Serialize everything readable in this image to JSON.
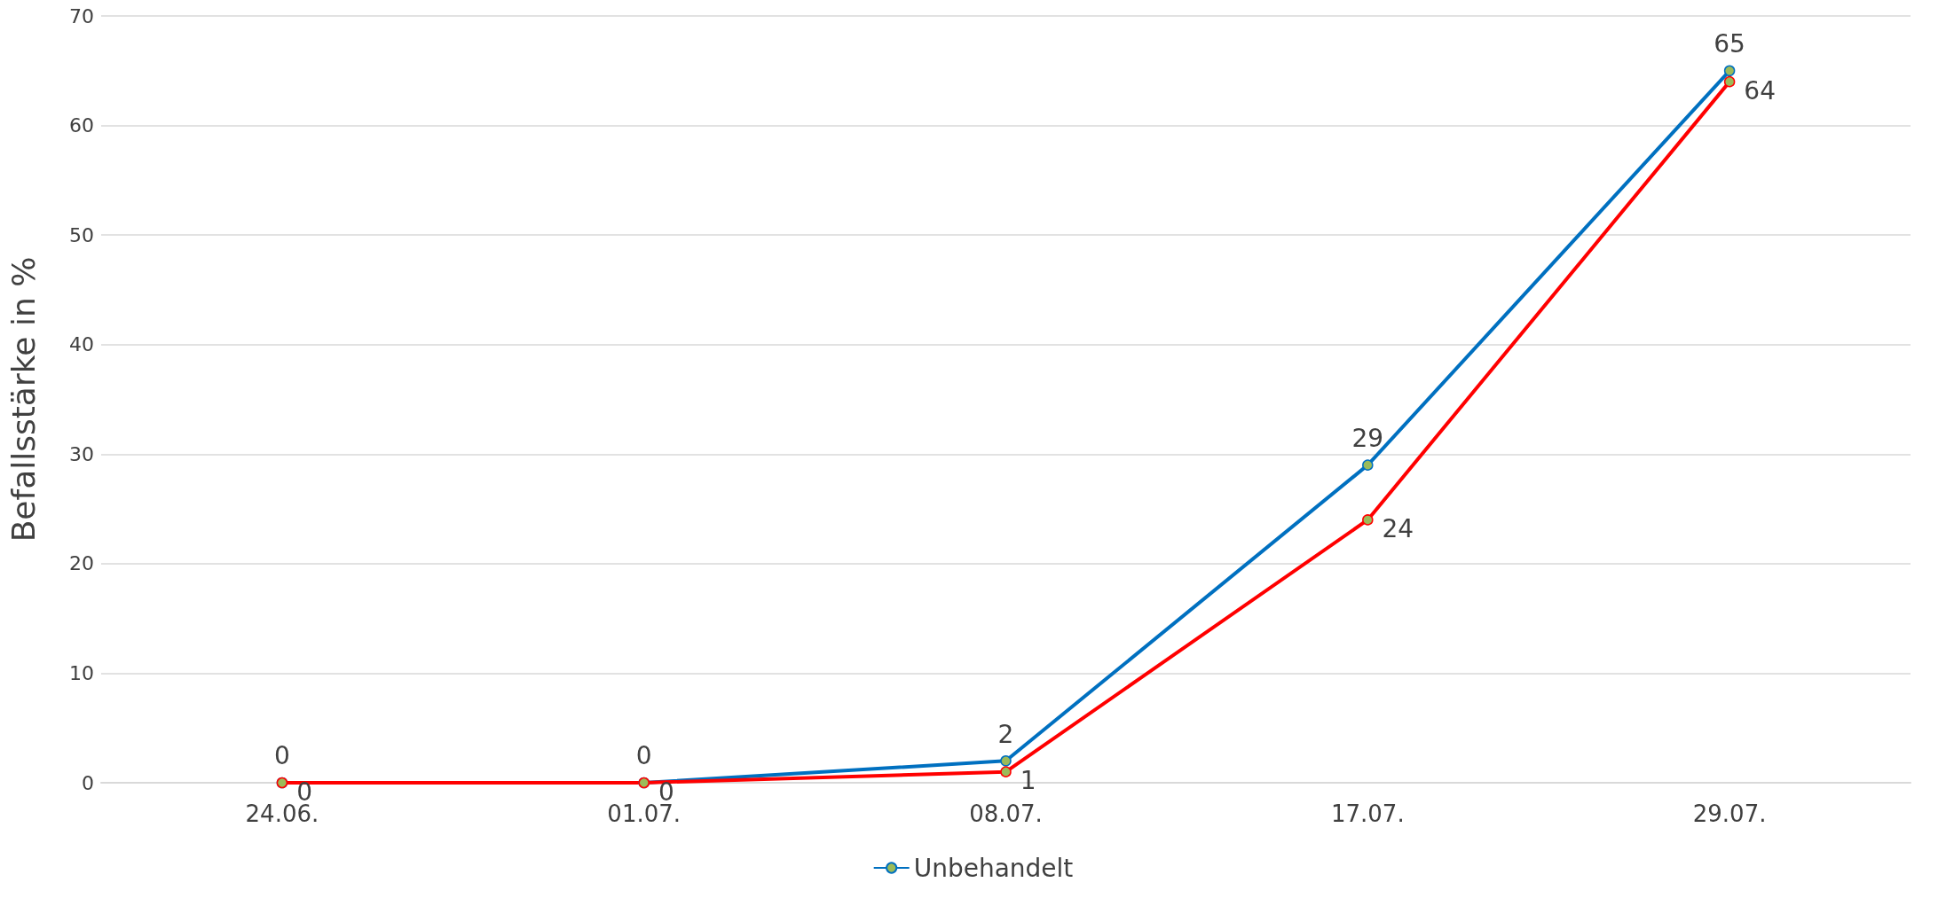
{
  "chart_data": {
    "type": "line",
    "ylabel": "Befallsstärke in %",
    "categories": [
      "24.06.",
      "01.07.",
      "08.07.",
      "17.07.",
      "29.07."
    ],
    "series": [
      {
        "name": "Unbehandelt",
        "color": "#0070c0",
        "values": [
          0,
          0,
          2,
          29,
          65
        ]
      },
      {
        "color": "#ff0000",
        "values": [
          0,
          0,
          1,
          24,
          64
        ]
      }
    ],
    "ylim": [
      0,
      70
    ],
    "yticks": [
      0,
      10,
      20,
      30,
      40,
      50,
      60,
      70
    ],
    "grid": "y",
    "legend": "bottom",
    "marker": "circle",
    "line_style": "solid",
    "data_labels": true
  }
}
